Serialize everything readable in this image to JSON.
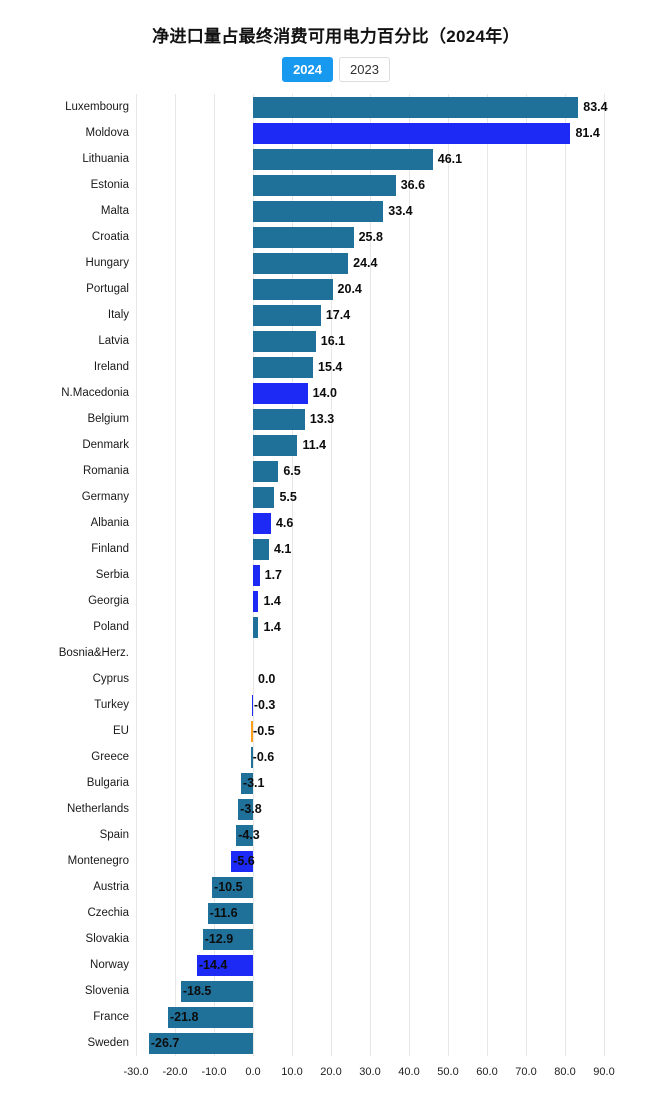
{
  "title": "净进口量占最终消费可用电力百分比（2024年）",
  "legend": [
    {
      "label": "2024",
      "active": true
    },
    {
      "label": "2023",
      "active": false
    }
  ],
  "colors": {
    "default": "#20719a",
    "highlight": "#1d2af5",
    "eu": "#ff9f1c",
    "legend_active_bg": "#1899f0",
    "gridline": "#e7e7e7"
  },
  "chart_data": {
    "type": "bar",
    "orientation": "horizontal",
    "title": "净进口量占最终消费可用电力百分比（2024年）",
    "xlabel": "",
    "ylabel": "",
    "xlim": [
      -30,
      90
    ],
    "grid": true,
    "legend_position": "top",
    "x_ticks": [
      -30,
      -20,
      -10,
      0,
      10,
      20,
      30,
      40,
      50,
      60,
      70,
      80,
      90
    ],
    "x_tick_labels": [
      "-30.0",
      "-20.0",
      "-10.0",
      "0.0",
      "10.0",
      "20.0",
      "30.0",
      "40.0",
      "50.0",
      "60.0",
      "70.0",
      "80.0",
      "90.0"
    ],
    "series": [
      {
        "name": "2024",
        "data": [
          {
            "label": "Luxembourg",
            "value": 83.4,
            "color": "default"
          },
          {
            "label": "Moldova",
            "value": 81.4,
            "color": "highlight"
          },
          {
            "label": "Lithuania",
            "value": 46.1,
            "color": "default"
          },
          {
            "label": "Estonia",
            "value": 36.6,
            "color": "default"
          },
          {
            "label": "Malta",
            "value": 33.4,
            "color": "default"
          },
          {
            "label": "Croatia",
            "value": 25.8,
            "color": "default"
          },
          {
            "label": "Hungary",
            "value": 24.4,
            "color": "default"
          },
          {
            "label": "Portugal",
            "value": 20.4,
            "color": "default"
          },
          {
            "label": "Italy",
            "value": 17.4,
            "color": "default"
          },
          {
            "label": "Latvia",
            "value": 16.1,
            "color": "default"
          },
          {
            "label": "Ireland",
            "value": 15.4,
            "color": "default"
          },
          {
            "label": "N.Macedonia",
            "value": 14.0,
            "color": "highlight"
          },
          {
            "label": "Belgium",
            "value": 13.3,
            "color": "default"
          },
          {
            "label": "Denmark",
            "value": 11.4,
            "color": "default"
          },
          {
            "label": "Romania",
            "value": 6.5,
            "color": "default"
          },
          {
            "label": "Germany",
            "value": 5.5,
            "color": "default"
          },
          {
            "label": "Albania",
            "value": 4.6,
            "color": "highlight"
          },
          {
            "label": "Finland",
            "value": 4.1,
            "color": "default"
          },
          {
            "label": "Serbia",
            "value": 1.7,
            "color": "highlight"
          },
          {
            "label": "Georgia",
            "value": 1.4,
            "color": "highlight"
          },
          {
            "label": "Poland",
            "value": 1.4,
            "color": "default"
          },
          {
            "label": "Bosnia&Herz.",
            "value": null,
            "color": "highlight"
          },
          {
            "label": "Cyprus",
            "value": 0.0,
            "color": "default"
          },
          {
            "label": "Turkey",
            "value": -0.3,
            "color": "highlight"
          },
          {
            "label": "EU",
            "value": -0.5,
            "color": "eu"
          },
          {
            "label": "Greece",
            "value": -0.6,
            "color": "default"
          },
          {
            "label": "Bulgaria",
            "value": -3.1,
            "color": "default"
          },
          {
            "label": "Netherlands",
            "value": -3.8,
            "color": "default"
          },
          {
            "label": "Spain",
            "value": -4.3,
            "color": "default"
          },
          {
            "label": "Montenegro",
            "value": -5.6,
            "color": "highlight"
          },
          {
            "label": "Austria",
            "value": -10.5,
            "color": "default"
          },
          {
            "label": "Czechia",
            "value": -11.6,
            "color": "default"
          },
          {
            "label": "Slovakia",
            "value": -12.9,
            "color": "default"
          },
          {
            "label": "Norway",
            "value": -14.4,
            "color": "highlight"
          },
          {
            "label": "Slovenia",
            "value": -18.5,
            "color": "default"
          },
          {
            "label": "France",
            "value": -21.8,
            "color": "default"
          },
          {
            "label": "Sweden",
            "value": -26.7,
            "color": "default"
          }
        ]
      }
    ]
  }
}
